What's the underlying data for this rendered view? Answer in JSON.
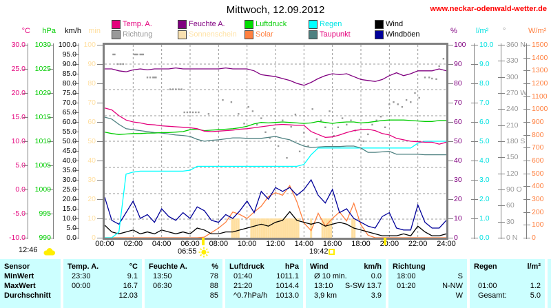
{
  "header": {
    "title": "Mittwoch, 12.09.2012",
    "url": "www.neckar-odenwald-wetter.de"
  },
  "colors": {
    "temp": "#E4007C",
    "humidity": "#800080",
    "pressure": "#00CC00",
    "rain": "#00FFFF",
    "wind": "#000000",
    "direction": "#999999",
    "sunshine": "#FFDFA0",
    "solar": "#FF8040",
    "dewpoint": "#4D8080",
    "gusts": "#000099",
    "frame": "#808080",
    "grid": "#9A9A9A",
    "table_bg": "#CCFFFF",
    "url_red": "#FF0000",
    "sun_yellow": "#FFEE00"
  },
  "legend": {
    "row1": [
      {
        "label": "Temp. A.",
        "swatch": "#E4007C",
        "text": "#E4007C"
      },
      {
        "label": "Feuchte A.",
        "swatch": "#800080",
        "text": "#800080"
      },
      {
        "label": "Luftdruck",
        "swatch": "#00DD00",
        "text": "#00CC00"
      },
      {
        "label": "Regen",
        "swatch": "#00FFFF",
        "text": "#00E5E5"
      },
      {
        "label": "Wind",
        "swatch": "#000000",
        "text": "#000000"
      }
    ],
    "row2": [
      {
        "label": "Richtung",
        "swatch": "#999999",
        "text": "#999999"
      },
      {
        "label": "Sonnenschein",
        "swatch": "#F8E0B0",
        "text": "#FFE3A8"
      },
      {
        "label": "Solar",
        "swatch": "#FF8040",
        "text": "#FF8040"
      },
      {
        "label": "Taupunkt",
        "swatch": "#4D8080",
        "text": "#E4007C"
      },
      {
        "label": "Windböen",
        "swatch": "#000099",
        "text": "#000000"
      }
    ]
  },
  "axes": {
    "left": [
      {
        "header": "°C",
        "color": "#E4007C",
        "labels": [
          "30.0",
          "25.0",
          "20.0",
          "15.0",
          "10.0",
          "5.0",
          "0.0",
          "-5.0",
          "-10.0"
        ]
      },
      {
        "header": "hPa",
        "color": "#00CC00",
        "labels": [
          "1030",
          "1025",
          "1020",
          "1015",
          "1010",
          "1005",
          "1000",
          "995",
          "990"
        ]
      },
      {
        "header": "km/h",
        "color": "#000000",
        "labels": [
          "100.0",
          "95.0",
          "90.0",
          "85.0",
          "80.0",
          "75.0",
          "70.0",
          "65.0",
          "60.0",
          "55.0",
          "50.0",
          "45.0",
          "40.0",
          "35.0",
          "30.0",
          "25.0",
          "20.0",
          "15.0",
          "10.0",
          "5.0",
          "0.0"
        ]
      },
      {
        "header": "min",
        "color": "#FFDFA0",
        "labels": [
          "100",
          "90",
          "80",
          "70",
          "60",
          "50",
          "40",
          "30",
          "20",
          "10",
          "0"
        ]
      }
    ],
    "right": [
      {
        "header": "%",
        "color": "#800080",
        "labels": [
          "100",
          "90",
          "80",
          "70",
          "60",
          "50",
          "40",
          "30",
          "20",
          "10",
          "0"
        ]
      },
      {
        "header": "l/m²",
        "color": "#00E0E0",
        "labels": [
          "10.0",
          "9.0",
          "8.0",
          "7.0",
          "6.0",
          "5.0",
          "4.0",
          "3.0",
          "2.0",
          "1.0",
          "0.0"
        ]
      },
      {
        "header": "°",
        "color": "#999999",
        "labels": [
          "360 N",
          "330",
          "300",
          "270 W",
          "240",
          "210",
          "180 S",
          "150",
          "120",
          "90 O",
          "60",
          "30",
          "0 N"
        ]
      },
      {
        "header": "W/m²",
        "color": "#FF8040",
        "labels": [
          "1500",
          "1400",
          "1300",
          "1200",
          "1100",
          "1000",
          "900",
          "800",
          "700",
          "600",
          "500",
          "400",
          "300",
          "200",
          "100",
          "0"
        ]
      }
    ]
  },
  "x_axis": {
    "labels": [
      "00:00",
      "02:00",
      "04:00",
      "06:00",
      "08:00",
      "10:00",
      "12:00",
      "14:00",
      "16:00",
      "18:00",
      "20:00",
      "22:00",
      "24:00"
    ]
  },
  "annotations": {
    "moonrise_time": "12:46",
    "sunrise_time": "06:55",
    "sunset_time": "19:42",
    "sunrise_hour": 6.92,
    "sunset_hour": 19.7
  },
  "chart_data": {
    "type": "line",
    "title": "Mittwoch, 12.09.2012",
    "x_range_hours": [
      0,
      24
    ],
    "step_hours": 0.5,
    "grid": "dashed",
    "series": [
      {
        "name": "Feuchte A.",
        "unit": "%",
        "color": "#800080",
        "scale": [
          0,
          100
        ],
        "values": [
          87.5,
          87.5,
          86.5,
          86,
          87,
          87.5,
          87,
          87.5,
          87.5,
          87.5,
          88,
          87.5,
          87.5,
          87.5,
          87.5,
          87.5,
          87.5,
          88,
          87.5,
          87.5,
          87.5,
          86.5,
          84.5,
          84,
          83.5,
          82.5,
          81.5,
          80,
          79,
          80.5,
          82.5,
          84,
          85,
          84.5,
          85,
          83.5,
          82,
          81.5,
          81,
          82,
          84,
          85.5,
          84,
          85,
          86.5,
          86.5,
          86.5,
          87.5,
          86.5
        ]
      },
      {
        "name": "Temp. A.",
        "unit": "°C",
        "color": "#E4007C",
        "scale": [
          -10,
          30
        ],
        "values": [
          16.9,
          16.5,
          15.3,
          14.4,
          14.0,
          13.8,
          13.5,
          13.4,
          13.2,
          13.1,
          13.0,
          12.9,
          12.8,
          12.6,
          12.1,
          12.0,
          12.1,
          12.2,
          12.3,
          12.5,
          12.6,
          12.8,
          13.0,
          13.2,
          13.4,
          13.5,
          13.4,
          13.3,
          13.3,
          12.0,
          11.4,
          10.8,
          10.9,
          11.3,
          11.8,
          12.2,
          12.4,
          12.5,
          12.2,
          11.6,
          11.3,
          10.6,
          10.3,
          10.0,
          9.9,
          9.8,
          9.8,
          9.4,
          9.8
        ]
      },
      {
        "name": "Luftdruck",
        "unit": "hPa",
        "color": "#00CC00",
        "scale": [
          990,
          1030
        ],
        "values": [
          1011.9,
          1011.6,
          1011.4,
          1011.5,
          1011.6,
          1011.6,
          1011.7,
          1011.7,
          1011.8,
          1011.8,
          1011.9,
          1012.0,
          1012.4,
          1012.5,
          1012.2,
          1012.3,
          1012.4,
          1012.5,
          1012.6,
          1012.8,
          1013.1,
          1013.6,
          1013.9,
          1013.8,
          1013.9,
          1014.0,
          1013.9,
          1013.8,
          1013.7,
          1013.8,
          1014.1,
          1013.9,
          1013.7,
          1013.9,
          1014.0,
          1014.0,
          1013.8,
          1013.9,
          1014.1,
          1014.3,
          1014.4,
          1014.4,
          1014.4,
          1014.3,
          1014.2,
          1014.1,
          1014.1,
          1014.3,
          1014.3
        ]
      },
      {
        "name": "Taupunkt",
        "unit": "°C",
        "color": "#4D8080",
        "scale": [
          -10,
          30
        ],
        "values": [
          15.0,
          14.6,
          13.5,
          12.6,
          12.4,
          12.2,
          12.0,
          11.8,
          11.7,
          11.5,
          11.3,
          11.2,
          11.0,
          10.4,
          10.0,
          10.2,
          10.3,
          10.5,
          10.7,
          10.7,
          10.6,
          10.6,
          10.6,
          10.8,
          11.0,
          10.6,
          10.3,
          9.6,
          9.0,
          8.7,
          8.8,
          8.9,
          8.9,
          8.9,
          9.0,
          9.0,
          8.6,
          7.7,
          7.7,
          7.8,
          7.9,
          7.3,
          7.3,
          7.3,
          7.3,
          7.2,
          7.2,
          7.2,
          7.2
        ]
      },
      {
        "name": "Regen",
        "unit": "l/m²",
        "color": "#00FFFF",
        "scale": [
          0,
          10
        ],
        "values": [
          0,
          0,
          0.3,
          3.3,
          3.4,
          3.45,
          3.45,
          3.45,
          3.45,
          3.45,
          3.45,
          3.45,
          3.5,
          3.7,
          3.7,
          3.7,
          3.7,
          3.7,
          3.7,
          3.7,
          3.7,
          3.7,
          3.7,
          3.7,
          3.7,
          3.7,
          3.7,
          3.7,
          3.8,
          4.3,
          4.65,
          4.65,
          4.65,
          4.65,
          4.65,
          4.65,
          4.65,
          4.65,
          4.65,
          4.65,
          4.65,
          4.65,
          4.65,
          4.65,
          4.9,
          5.0,
          5.0,
          5.0,
          5.0
        ]
      },
      {
        "name": "Windböen",
        "unit": "km/h",
        "color": "#000099",
        "scale": [
          0,
          100
        ],
        "values": [
          21,
          9,
          7,
          13,
          19,
          10,
          12,
          8,
          15,
          11,
          9,
          13,
          10,
          16,
          14,
          9,
          8,
          12,
          10,
          14,
          19,
          13,
          24,
          20,
          26,
          24,
          26,
          22,
          25,
          30,
          22,
          18,
          25,
          13,
          15,
          10,
          8,
          6,
          5,
          11,
          13,
          5,
          4,
          4,
          17,
          8,
          5,
          5,
          9
        ]
      },
      {
        "name": "Wind",
        "unit": "km/h",
        "color": "#000000",
        "scale": [
          0,
          100
        ],
        "values": [
          6.5,
          3,
          2,
          3,
          4,
          2,
          3,
          2,
          4,
          3,
          2,
          3,
          2,
          5,
          4,
          2,
          2,
          3,
          3,
          4,
          5,
          6,
          7,
          6,
          8,
          9,
          13.5,
          9,
          8,
          7,
          8,
          6,
          7,
          8,
          7,
          5,
          4,
          3,
          2,
          1,
          1,
          1,
          2,
          1,
          6,
          3,
          1,
          1,
          2
        ]
      },
      {
        "name": "Solar",
        "unit": "W/m²",
        "color": "#FF8040",
        "scale": [
          0,
          1500
        ],
        "values": [
          0,
          0,
          0,
          0,
          0,
          0,
          0,
          0,
          0,
          0,
          0,
          0,
          0,
          0,
          5,
          40,
          75,
          120,
          200,
          180,
          150,
          200,
          245,
          320,
          350,
          330,
          405,
          280,
          115,
          55,
          190,
          90,
          150,
          200,
          130,
          268,
          100,
          20,
          0,
          0,
          0,
          0,
          0,
          0,
          0,
          0,
          0,
          0,
          0
        ]
      }
    ],
    "richtung_dots": {
      "name": "Richtung",
      "unit": "°",
      "color": "#999999",
      "scale": [
        0,
        360
      ],
      "points": [
        [
          0.6,
          342
        ],
        [
          0.7,
          342
        ],
        [
          0.9,
          324
        ],
        [
          1.1,
          324
        ],
        [
          1.3,
          324
        ],
        [
          2.1,
          342
        ],
        [
          2.2,
          342
        ],
        [
          2.3,
          342
        ],
        [
          2.5,
          342
        ],
        [
          2.6,
          342
        ],
        [
          2.7,
          342
        ],
        [
          3.0,
          299
        ],
        [
          3.2,
          299
        ],
        [
          3.4,
          299
        ],
        [
          3.5,
          299
        ],
        [
          3.6,
          299
        ],
        [
          4.6,
          277
        ],
        [
          4.8,
          277
        ],
        [
          5.0,
          277
        ],
        [
          5.2,
          277
        ],
        [
          5.4,
          277
        ],
        [
          5.6,
          234
        ],
        [
          5.8,
          234
        ],
        [
          6.0,
          234
        ],
        [
          6.2,
          234
        ],
        [
          6.4,
          234
        ],
        [
          6.6,
          234
        ],
        [
          7.3,
          231
        ],
        [
          8.3,
          257
        ],
        [
          8.9,
          253
        ],
        [
          9.4,
          231
        ],
        [
          9.8,
          213
        ],
        [
          10.1,
          244
        ],
        [
          10.4,
          236
        ],
        [
          10.7,
          211
        ],
        [
          11.0,
          223
        ],
        [
          11.3,
          197
        ],
        [
          11.6,
          186
        ],
        [
          11.9,
          203
        ],
        [
          12.2,
          171
        ],
        [
          12.5,
          219
        ],
        [
          12.8,
          149
        ],
        [
          13.1,
          207
        ],
        [
          13.4,
          230
        ],
        [
          13.7,
          161
        ],
        [
          14.0,
          196
        ],
        [
          14.3,
          171
        ],
        [
          14.6,
          240
        ],
        [
          14.9,
          184
        ],
        [
          15.2,
          219
        ],
        [
          15.5,
          206
        ],
        [
          15.8,
          236
        ],
        [
          16.1,
          190
        ],
        [
          16.4,
          206
        ],
        [
          16.7,
          223
        ],
        [
          17.0,
          211
        ],
        [
          17.3,
          219
        ],
        [
          17.6,
          200
        ],
        [
          17.9,
          183
        ],
        [
          18.2,
          180
        ],
        [
          18.5,
          193
        ],
        [
          18.8,
          211
        ],
        [
          19.1,
          219
        ],
        [
          19.4,
          226
        ],
        [
          19.7,
          206
        ],
        [
          20.0,
          249
        ],
        [
          20.3,
          253
        ],
        [
          20.6,
          249
        ],
        [
          20.9,
          244
        ],
        [
          21.2,
          257
        ],
        [
          21.5,
          253
        ],
        [
          21.8,
          270
        ],
        [
          22.1,
          261
        ],
        [
          22.5,
          299
        ],
        [
          22.8,
          299
        ],
        [
          23.0,
          297
        ],
        [
          23.3,
          296
        ],
        [
          23.5,
          320
        ],
        [
          23.8,
          334
        ]
      ]
    },
    "sonnenschein_bars": {
      "name": "Sonnenschein",
      "unit": "min",
      "color": "#FFDFA0",
      "scale": [
        0,
        100
      ],
      "bar_value": 10,
      "times": [
        8.95,
        9.1,
        9.25,
        9.4,
        10.3,
        10.45,
        10.6,
        10.75,
        10.9,
        11.05,
        11.2,
        11.35,
        11.5,
        11.65,
        11.8,
        11.95,
        12.1,
        12.25,
        12.4,
        12.55,
        12.7,
        12.85,
        13.0,
        13.15,
        13.3,
        13.45,
        13.6,
        14.5,
        15.3,
        15.45,
        15.6,
        15.75,
        15.9,
        17.4,
        17.55
      ]
    }
  },
  "table": {
    "row_labels": [
      "Sensor",
      "MinWert",
      "MaxWert",
      "Durchschnitt"
    ],
    "columns": [
      {
        "name": "Temp. A.",
        "unit": "°C",
        "rows": [
          [
            "23:30",
            "9.1"
          ],
          [
            "00:00",
            "16.7"
          ],
          [
            "",
            "12.03"
          ]
        ]
      },
      {
        "name": "Feuchte A.",
        "unit": "%",
        "rows": [
          [
            "13:50",
            "78"
          ],
          [
            "06:30",
            "88"
          ],
          [
            "",
            "85"
          ]
        ]
      },
      {
        "name": "Luftdruck",
        "unit": "hPa",
        "rows": [
          [
            "01:40",
            "1011.1"
          ],
          [
            "21:20",
            "1014.4"
          ],
          [
            "^0.7hPa/h",
            "1013.0"
          ]
        ]
      },
      {
        "name": "Wind",
        "unit": "km/h",
        "rows": [
          [
            "Ø 10 min.",
            "0.0"
          ],
          [
            "13:10",
            "S-SW 13.7"
          ],
          [
            "3,9 km",
            "3.9"
          ]
        ]
      },
      {
        "name": "Richtung",
        "unit": "",
        "rows": [
          [
            "18:00",
            "S"
          ],
          [
            "01:20",
            "N-NW"
          ],
          [
            "",
            "W"
          ]
        ]
      },
      {
        "name": "Regen",
        "unit": "l/m²",
        "rows": [
          [
            "",
            ""
          ],
          [
            "01:00",
            "1.2"
          ],
          [
            "Gesamt:",
            "5.0"
          ]
        ]
      }
    ]
  }
}
